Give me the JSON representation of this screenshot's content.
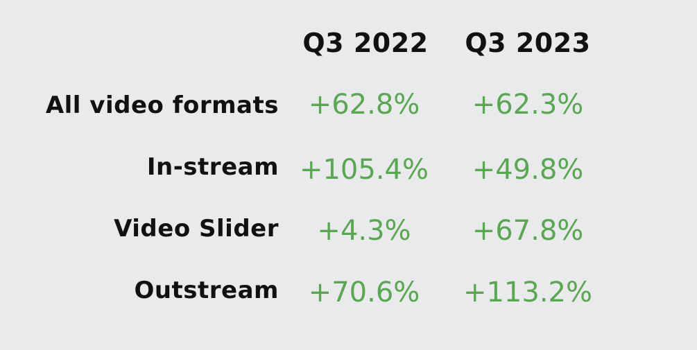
{
  "chart_data": {
    "type": "table",
    "columns": [
      "Q3 2022",
      "Q3 2023"
    ],
    "rows": [
      {
        "label": "All video formats",
        "values": [
          "+62.8%",
          "+62.3%"
        ]
      },
      {
        "label": "In-stream",
        "values": [
          "+105.4%",
          "+49.8%"
        ]
      },
      {
        "label": "Video Slider",
        "values": [
          "+4.3%",
          "+67.8%"
        ]
      },
      {
        "label": "Outstream",
        "values": [
          "+70.6%",
          "+113.2%"
        ]
      }
    ]
  },
  "colors": {
    "background": "#e9eaeb",
    "label_text": "#111111",
    "value_text": "#5aa653"
  }
}
